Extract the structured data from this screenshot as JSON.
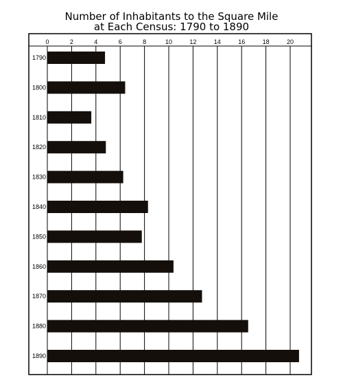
{
  "chart_data": {
    "type": "bar",
    "orientation": "horizontal",
    "title": "Number of Inhabitants to the Square Mile",
    "subtitle": "at Each Census: 1790 to 1890",
    "categories": [
      "1790",
      "1800",
      "1810",
      "1820",
      "1830",
      "1840",
      "1850",
      "1860",
      "1870",
      "1880",
      "1890"
    ],
    "values": [
      4.75,
      6.41,
      3.62,
      4.82,
      6.25,
      8.29,
      7.78,
      10.39,
      12.74,
      16.54,
      20.73
    ],
    "xticks": [
      "0",
      "2",
      "4",
      "6",
      "8",
      "10",
      "12",
      "14",
      "16",
      "18",
      "20"
    ],
    "xlim": [
      0,
      22
    ],
    "xaxis_position": "top",
    "grid": true,
    "bar_color": "#140f0a"
  }
}
